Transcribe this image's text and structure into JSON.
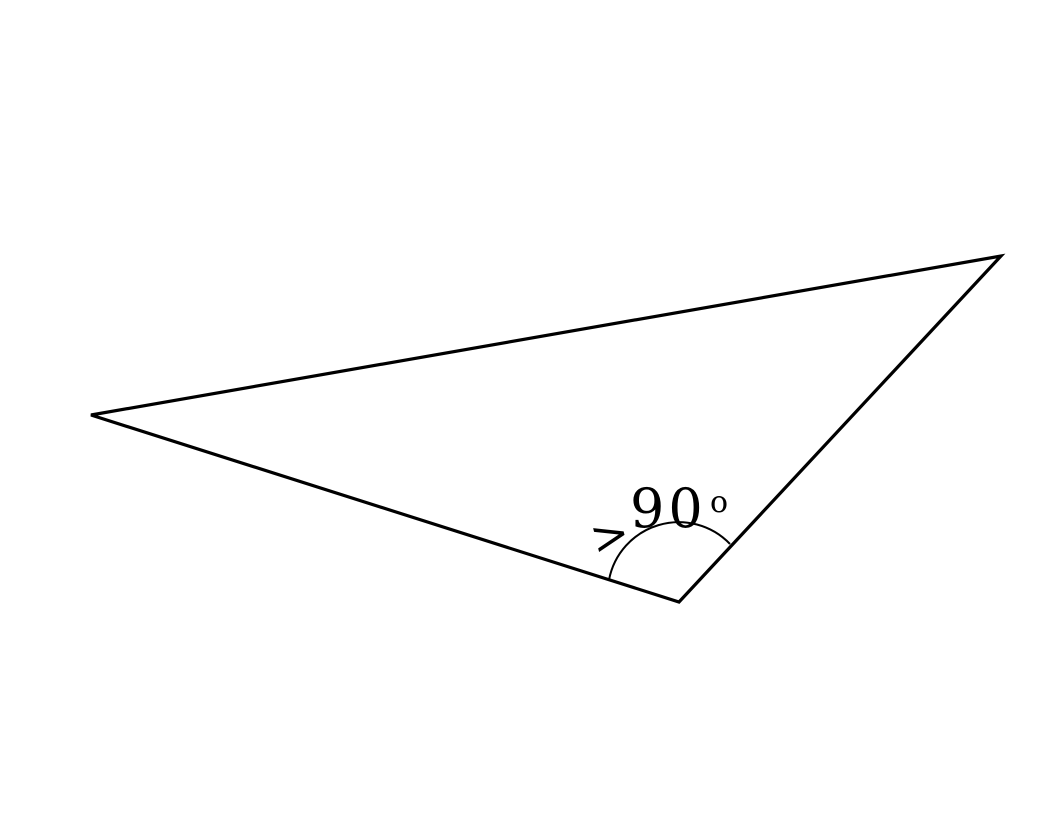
{
  "diagram": {
    "shape": "obtuse-triangle",
    "angle_label": {
      "symbol": ">",
      "value": "90",
      "unit": "o"
    },
    "colors": {
      "stroke": "#000000",
      "background": "#ffffff"
    }
  }
}
